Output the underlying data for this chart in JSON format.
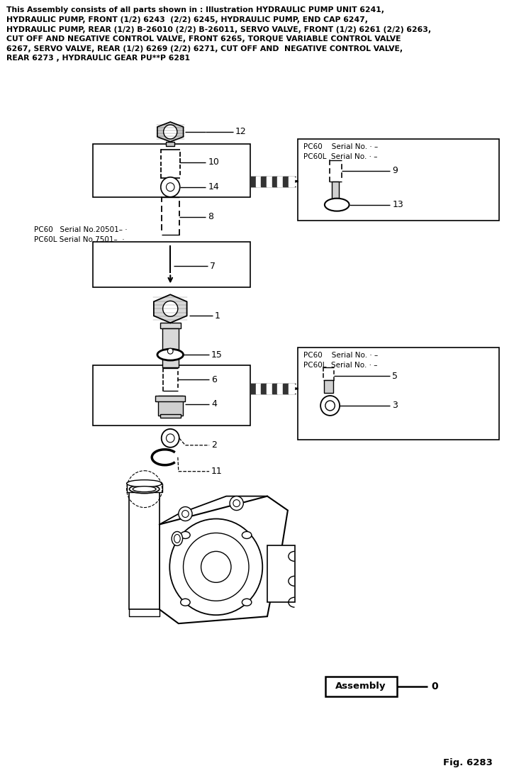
{
  "bg_color": "#ffffff",
  "title_text": "This Assembly consists of all parts shown in : Illustration HYDRAULIC PUMP UNIT 6241,\nHYDRAULIC PUMP, FRONT (1/2) 6243  (2/2) 6245, HYDRAULIC PUMP, END CAP 6247,\nHYDRAULIC PUMP, REAR (1/2) B-26010 (2/2) B-26011, SERVO VALVE, FRONT (1/2) 6261 (2/2) 6263,\nCUT OFF AND NEGATIVE CONTROL VALVE, FRONT 6265, TORQUE VARIABLE CONTROL VALVE\n6267, SERVO VALVE, REAR (1/2) 6269 (2/2) 6271, CUT OFF AND  NEGATIVE CONTROL VALVE,\nREAR 6273 , HYDRAULIC GEAR PU**P 6281",
  "fig_label": "Fig. 6283",
  "assembly_label": "Assembly",
  "assembly_num": "0"
}
